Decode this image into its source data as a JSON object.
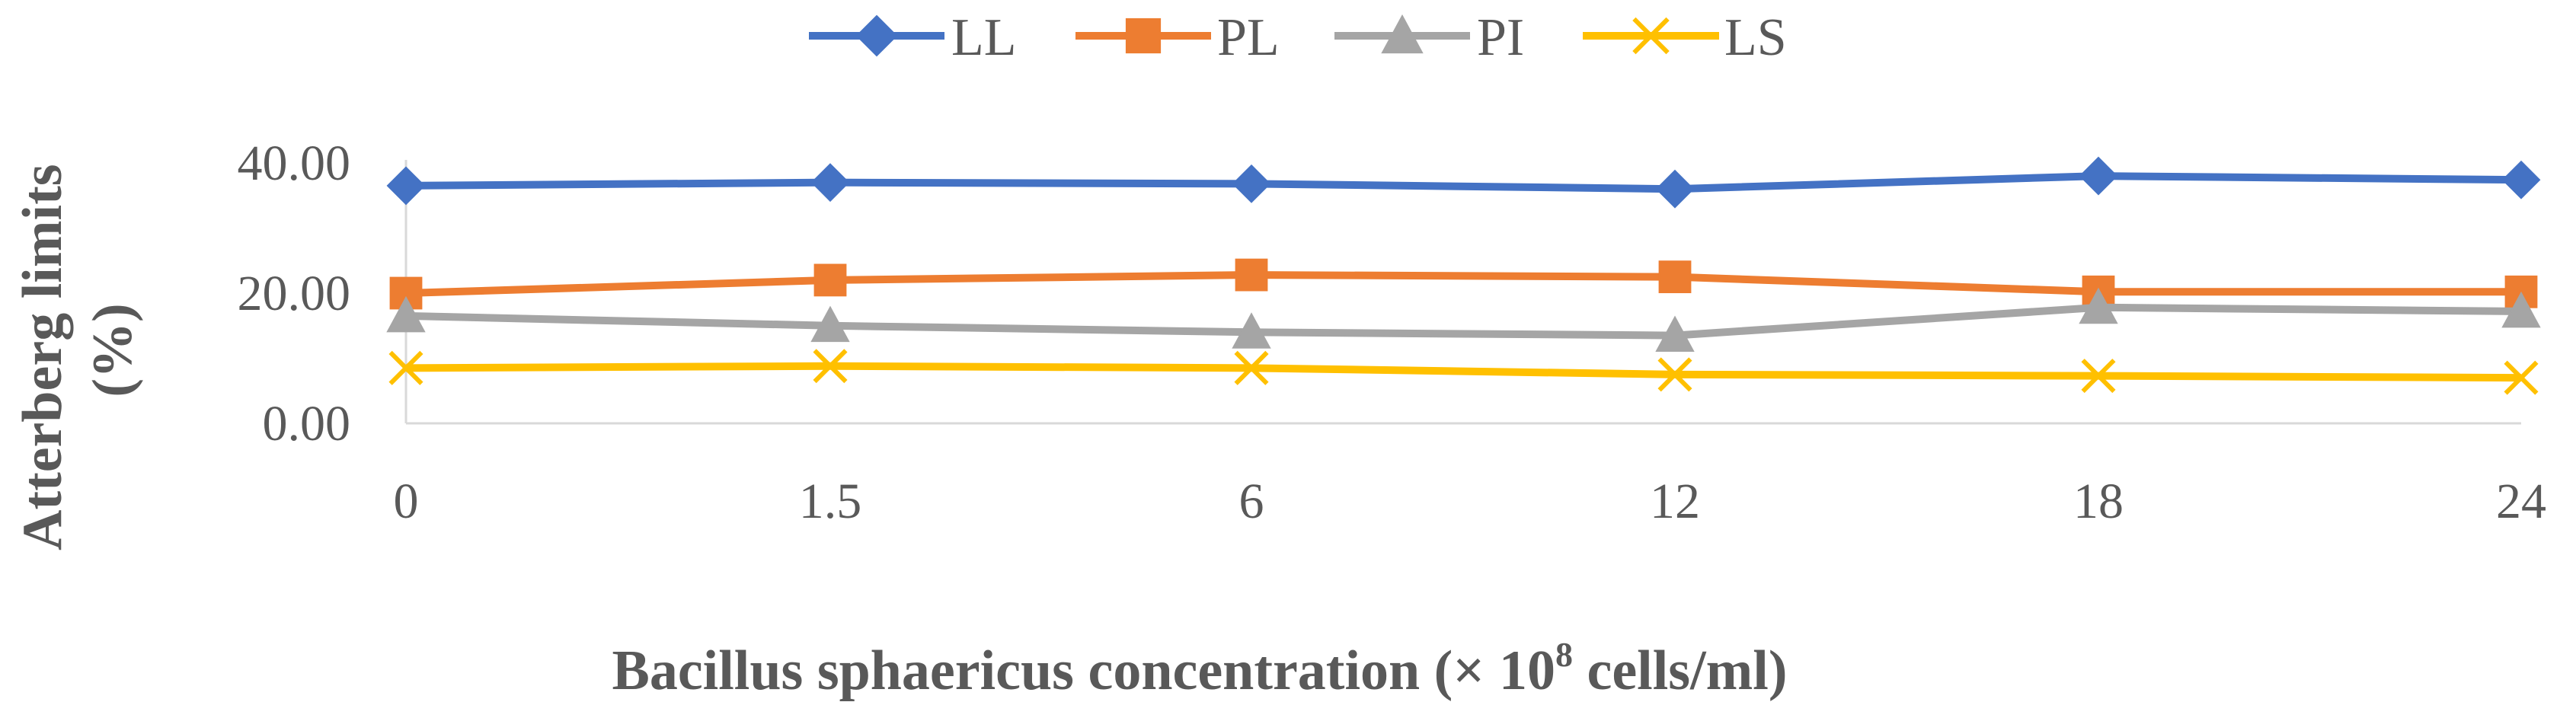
{
  "chart_data": {
    "type": "line",
    "categories": [
      "0",
      "1.5",
      "6",
      "12",
      "18",
      "24"
    ],
    "series": [
      {
        "name": "LL",
        "values": [
          36.5,
          37.0,
          36.8,
          36.0,
          38.0,
          37.4
        ],
        "color": "#4472C4",
        "marker": "diamond"
      },
      {
        "name": "PL",
        "values": [
          20.0,
          22.0,
          22.8,
          22.5,
          20.2,
          20.2
        ],
        "color": "#ED7D31",
        "marker": "square"
      },
      {
        "name": "PI",
        "values": [
          16.5,
          15.0,
          14.0,
          13.5,
          17.8,
          17.2
        ],
        "color": "#A5A5A5",
        "marker": "triangle"
      },
      {
        "name": "LS",
        "values": [
          8.5,
          8.8,
          8.5,
          7.5,
          7.3,
          7.0
        ],
        "color": "#FFC000",
        "marker": "x"
      }
    ],
    "y_ticks": [
      "0.00",
      "20.00",
      "40.00"
    ],
    "ylim": [
      0,
      40
    ],
    "ylabel_line1": "Atterberg limits",
    "ylabel_line2": "(%)",
    "xlabel_main": "Bacillus sphaericus concentration (× 10",
    "xlabel_sup": "8",
    "xlabel_end": " cells/ml)",
    "grid": false,
    "legend_position": "top"
  }
}
